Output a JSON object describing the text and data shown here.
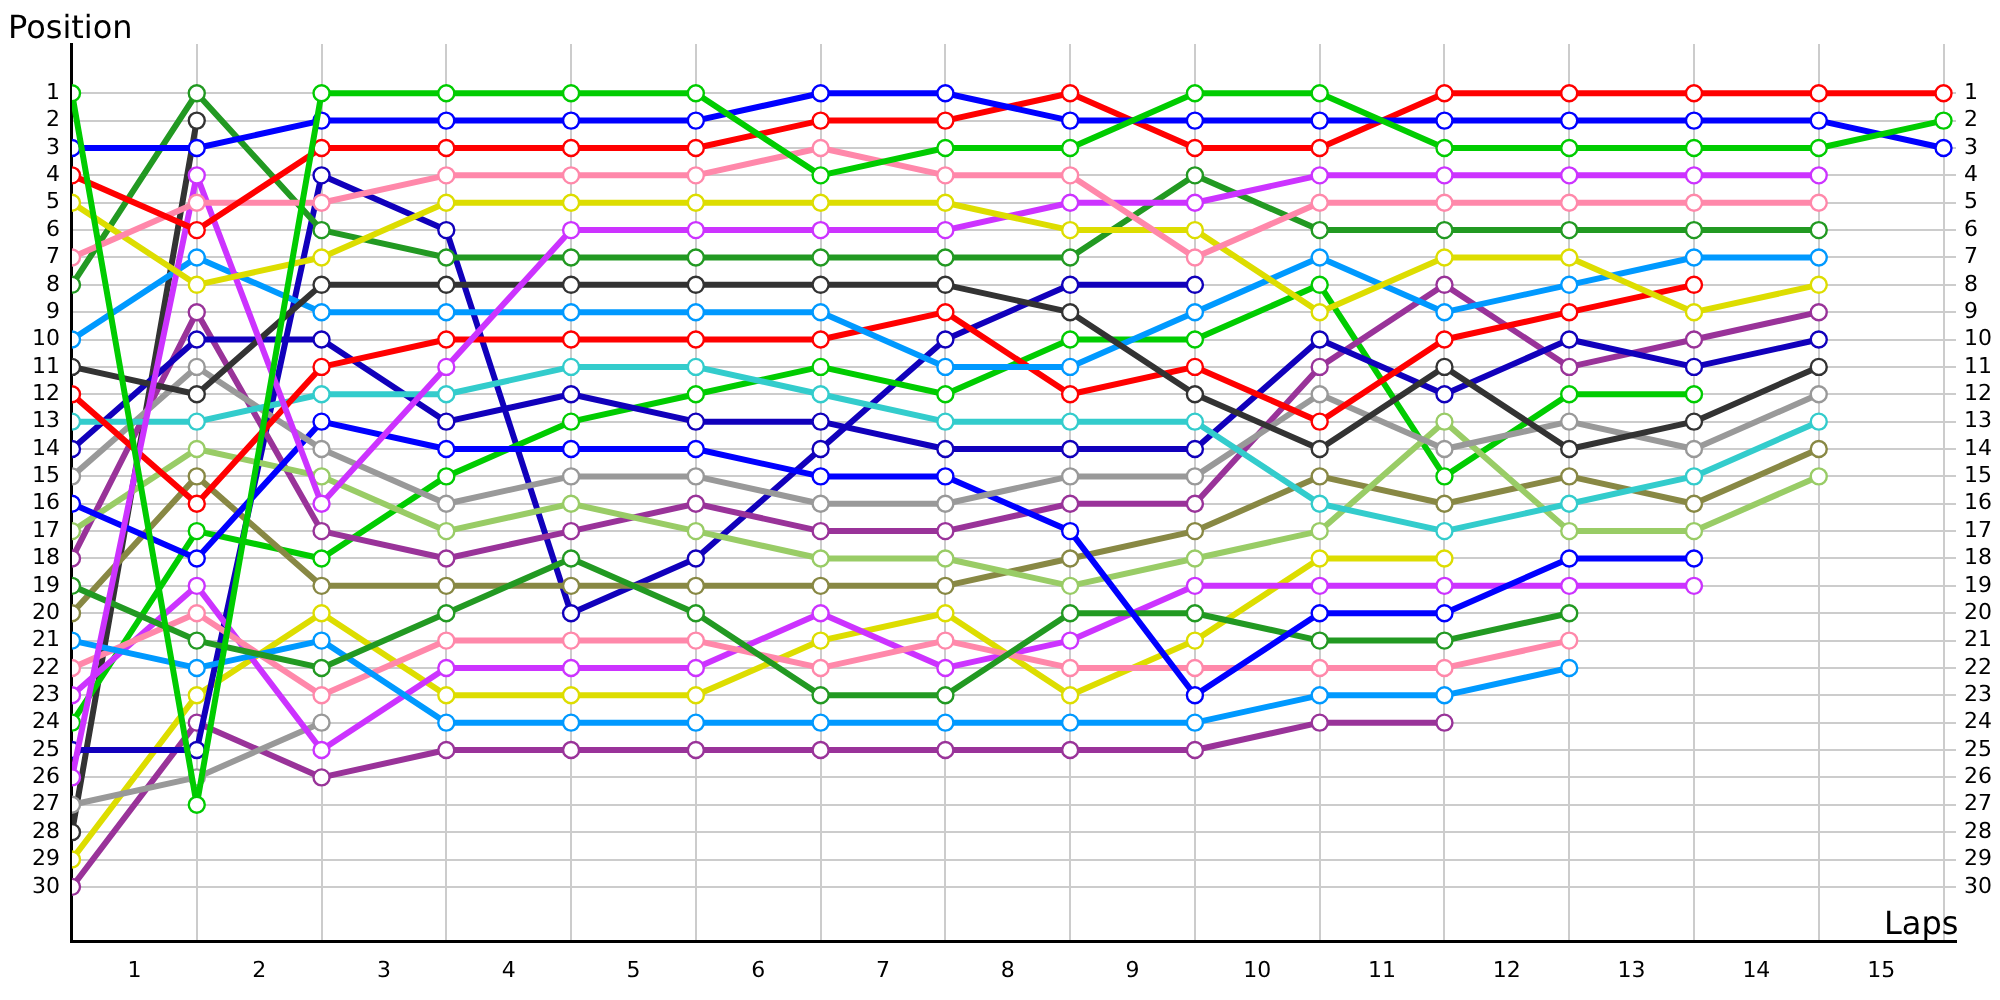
{
  "chart_data": {
    "type": "line",
    "xlabel": "Laps",
    "ylabel": "Position",
    "x": [
      0,
      1,
      2,
      3,
      4,
      5,
      6,
      7,
      8,
      9,
      10,
      11,
      12,
      13,
      14,
      15
    ],
    "xlim": [
      0,
      15.1
    ],
    "xticks": [
      {
        "value": 0,
        "label": null
      },
      {
        "value": 0.5,
        "label": "1"
      },
      {
        "value": 1,
        "label": null
      },
      {
        "value": 1.5,
        "label": "2"
      },
      {
        "value": 2,
        "label": null
      },
      {
        "value": 2.5,
        "label": "3"
      },
      {
        "value": 3,
        "label": null
      },
      {
        "value": 3.5,
        "label": "4"
      },
      {
        "value": 4,
        "label": null
      },
      {
        "value": 4.5,
        "label": "5"
      },
      {
        "value": 5,
        "label": null
      },
      {
        "value": 5.5,
        "label": "6"
      },
      {
        "value": 6,
        "label": null
      },
      {
        "value": 6.5,
        "label": "7"
      },
      {
        "value": 7,
        "label": null
      },
      {
        "value": 7.5,
        "label": "8"
      },
      {
        "value": 8,
        "label": null
      },
      {
        "value": 8.5,
        "label": "9"
      },
      {
        "value": 9,
        "label": null
      },
      {
        "value": 9.5,
        "label": "10"
      },
      {
        "value": 10,
        "label": null
      },
      {
        "value": 10.5,
        "label": "11"
      },
      {
        "value": 11,
        "label": null
      },
      {
        "value": 11.5,
        "label": "12"
      },
      {
        "value": 12,
        "label": null
      },
      {
        "value": 12.5,
        "label": "13"
      },
      {
        "value": 13,
        "label": null
      },
      {
        "value": 13.5,
        "label": "14"
      },
      {
        "value": 14,
        "label": null
      },
      {
        "value": 14.5,
        "label": "15"
      },
      {
        "value": 15,
        "label": null
      }
    ],
    "ylim": [
      32,
      -0.8
    ],
    "yticks": [
      1,
      2,
      3,
      4,
      5,
      6,
      7,
      8,
      9,
      10,
      11,
      12,
      13,
      14,
      15,
      16,
      17,
      18,
      19,
      20,
      21,
      22,
      23,
      24,
      25,
      26,
      27,
      28,
      29,
      30
    ],
    "y2lim": [
      32,
      -0.8
    ],
    "y2ticks": [
      1,
      2,
      3,
      4,
      5,
      6,
      7,
      8,
      9,
      10,
      11,
      12,
      13,
      14,
      15,
      16,
      17,
      18,
      19,
      20,
      21,
      22,
      23,
      24,
      25,
      26,
      27,
      28,
      29,
      30
    ],
    "grid": true,
    "legend": false,
    "marker": "circle",
    "line_style": "solid",
    "series": [
      {
        "color": "#00cc00",
        "values": [
          1,
          27,
          1,
          1,
          1,
          1,
          4,
          3,
          3,
          1,
          1,
          3,
          3,
          3,
          3,
          2
        ]
      },
      {
        "color": "#0000ff",
        "values": [
          3,
          3,
          2,
          2,
          2,
          2,
          1,
          1,
          2,
          2,
          2,
          2,
          2,
          2,
          2,
          3
        ]
      },
      {
        "color": "#ff0000",
        "values": [
          4,
          6,
          3,
          3,
          3,
          3,
          2,
          2,
          1,
          3,
          3,
          1,
          1,
          1,
          1,
          1
        ]
      },
      {
        "color": "#ff88aa",
        "values": [
          7,
          5,
          5,
          4,
          4,
          4,
          3,
          4,
          4,
          7,
          5,
          5,
          5,
          5,
          5,
          null
        ]
      },
      {
        "color": "#dddd00",
        "values": [
          5,
          8,
          7,
          5,
          5,
          5,
          5,
          5,
          6,
          6,
          9,
          7,
          7,
          9,
          8,
          null
        ]
      },
      {
        "color": "#cc33ff",
        "values": [
          26,
          4,
          16,
          11,
          6,
          6,
          6,
          6,
          5,
          5,
          4,
          4,
          4,
          4,
          4,
          null
        ]
      },
      {
        "color": "#229922",
        "values": [
          8,
          1,
          6,
          7,
          7,
          7,
          7,
          7,
          7,
          4,
          6,
          6,
          6,
          6,
          6,
          null
        ]
      },
      {
        "color": "#333333",
        "values": [
          11,
          12,
          8,
          8,
          8,
          8,
          8,
          8,
          9,
          12,
          14,
          11,
          14,
          13,
          11,
          null
        ]
      },
      {
        "color": "#0099ff",
        "values": [
          10,
          7,
          9,
          9,
          9,
          9,
          9,
          11,
          11,
          9,
          7,
          9,
          8,
          7,
          7,
          null
        ]
      },
      {
        "color": "#ff0000",
        "values": [
          12,
          16,
          11,
          10,
          10,
          10,
          10,
          9,
          12,
          11,
          13,
          10,
          9,
          8,
          null,
          null
        ]
      },
      {
        "color": "#33cccc",
        "values": [
          13,
          13,
          12,
          12,
          11,
          11,
          12,
          13,
          13,
          13,
          16,
          17,
          16,
          15,
          13,
          null
        ]
      },
      {
        "color": "#1100bb",
        "values": [
          14,
          10,
          10,
          13,
          12,
          13,
          13,
          14,
          14,
          14,
          10,
          12,
          10,
          11,
          10,
          null
        ]
      },
      {
        "color": "#999999",
        "values": [
          15,
          11,
          14,
          16,
          15,
          15,
          16,
          16,
          15,
          15,
          12,
          14,
          13,
          14,
          12,
          null
        ]
      },
      {
        "color": "#0000ff",
        "values": [
          16,
          18,
          13,
          14,
          14,
          14,
          15,
          15,
          17,
          23,
          20,
          20,
          18,
          18,
          null,
          null
        ]
      },
      {
        "color": "#99cc66",
        "values": [
          17,
          14,
          15,
          17,
          16,
          17,
          18,
          18,
          19,
          18,
          17,
          13,
          17,
          17,
          15,
          null
        ]
      },
      {
        "color": "#993399",
        "values": [
          18,
          9,
          17,
          18,
          17,
          16,
          17,
          17,
          16,
          16,
          11,
          8,
          11,
          10,
          9,
          null
        ]
      },
      {
        "color": "#229922",
        "values": [
          19,
          21,
          22,
          20,
          18,
          20,
          23,
          23,
          20,
          20,
          21,
          21,
          20,
          null,
          null,
          null
        ]
      },
      {
        "color": "#888844",
        "values": [
          20,
          15,
          19,
          19,
          19,
          19,
          19,
          19,
          18,
          17,
          15,
          16,
          15,
          16,
          14,
          null
        ]
      },
      {
        "color": "#0099ff",
        "values": [
          21,
          22,
          21,
          24,
          24,
          24,
          24,
          24,
          24,
          24,
          23,
          23,
          22,
          null,
          null,
          null
        ]
      },
      {
        "color": "#ff88aa",
        "values": [
          22,
          20,
          23,
          21,
          21,
          21,
          22,
          21,
          22,
          22,
          22,
          22,
          21,
          null,
          null,
          null
        ]
      },
      {
        "color": "#cc33ff",
        "values": [
          23,
          19,
          25,
          22,
          22,
          22,
          20,
          22,
          21,
          19,
          19,
          19,
          19,
          19,
          null,
          null
        ]
      },
      {
        "color": "#00cc00",
        "values": [
          24,
          17,
          18,
          15,
          13,
          12,
          11,
          12,
          10,
          10,
          8,
          15,
          12,
          12,
          null,
          null
        ]
      },
      {
        "color": "#1100bb",
        "values": [
          25,
          25,
          4,
          6,
          20,
          18,
          14,
          10,
          8,
          8,
          null,
          null,
          null,
          null,
          null,
          null
        ]
      },
      {
        "color": "#999999",
        "values": [
          27,
          26,
          24,
          null,
          null,
          null,
          null,
          null,
          null,
          null,
          null,
          null,
          null,
          null,
          null,
          null
        ]
      },
      {
        "color": "#333333",
        "values": [
          28,
          2,
          null,
          null,
          null,
          null,
          null,
          null,
          null,
          null,
          null,
          null,
          null,
          null,
          null,
          null
        ]
      },
      {
        "color": "#dddd00",
        "values": [
          29,
          23,
          20,
          23,
          23,
          23,
          21,
          20,
          23,
          21,
          18,
          18,
          null,
          null,
          null,
          null
        ]
      },
      {
        "color": "#993399",
        "values": [
          30,
          24,
          26,
          25,
          25,
          25,
          25,
          25,
          25,
          25,
          24,
          24,
          null,
          null,
          null,
          null
        ]
      }
    ]
  }
}
